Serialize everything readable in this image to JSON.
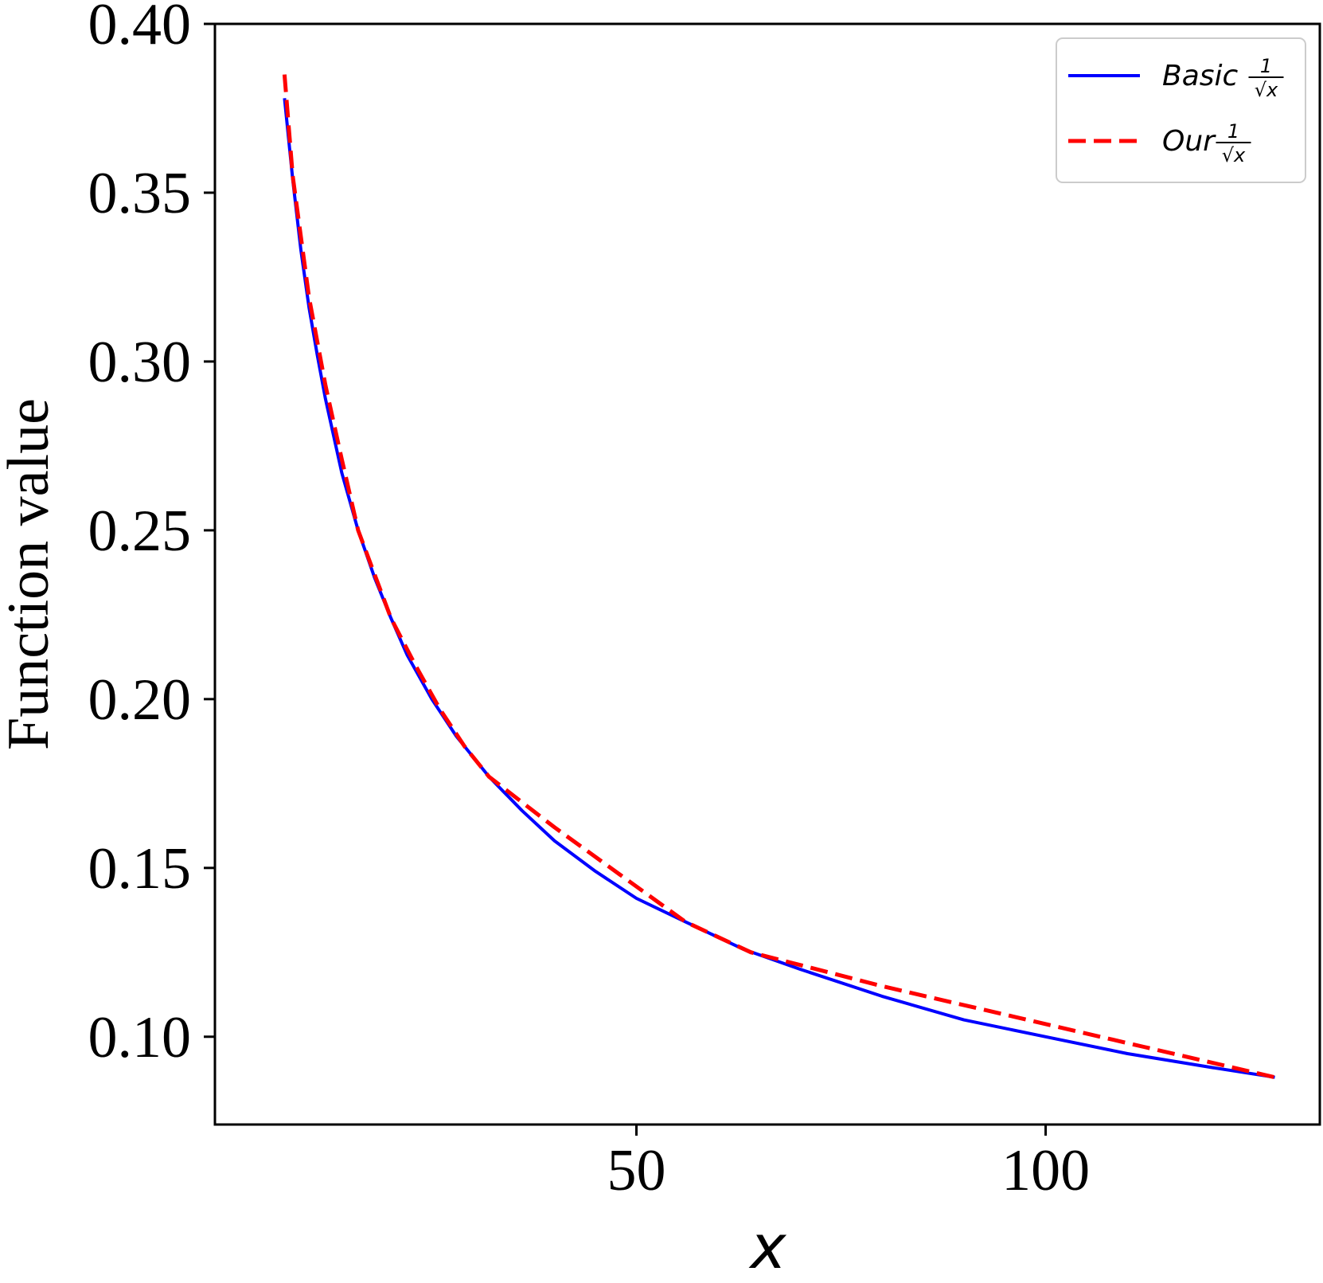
{
  "chart_data": {
    "type": "line",
    "xlabel": "x",
    "ylabel": "Function value",
    "xlim": [
      -1.5,
      133.5
    ],
    "ylim": [
      0.074,
      0.4
    ],
    "xticks": [
      50,
      100
    ],
    "xtick_labels": [
      "50",
      "100"
    ],
    "yticks": [
      0.1,
      0.15,
      0.2,
      0.25,
      0.3,
      0.35,
      0.4
    ],
    "ytick_labels": [
      "0.10",
      "0.15",
      "0.20",
      "0.25",
      "0.30",
      "0.35",
      "0.40"
    ],
    "grid": false,
    "legend_position": "top-right",
    "series": [
      {
        "name": "Basic",
        "name_fraction": {
          "numerator": "1",
          "denominator": "√x"
        },
        "color": "#0000ff",
        "style": "solid",
        "x": [
          7,
          8,
          9,
          10,
          11,
          12,
          14,
          16,
          18,
          20,
          22,
          25,
          28,
          32,
          36,
          40,
          45,
          50,
          56,
          63,
          70,
          80,
          90,
          100,
          110,
          120,
          128
        ],
        "y": [
          0.378,
          0.354,
          0.333,
          0.316,
          0.302,
          0.289,
          0.267,
          0.25,
          0.236,
          0.224,
          0.213,
          0.2,
          0.189,
          0.177,
          0.167,
          0.158,
          0.149,
          0.141,
          0.134,
          0.126,
          0.12,
          0.112,
          0.105,
          0.1,
          0.095,
          0.091,
          0.088
        ]
      },
      {
        "name": "Our",
        "name_fraction": {
          "numerator": "1",
          "denominator": "√x"
        },
        "color": "#ff0000",
        "style": "dashed",
        "x": [
          7,
          8,
          10,
          12,
          14,
          16,
          18,
          20,
          23,
          26,
          29,
          32,
          40,
          48,
          56,
          64,
          80,
          96,
          112,
          128
        ],
        "y": [
          0.385,
          0.355,
          0.319,
          0.293,
          0.271,
          0.25,
          0.237,
          0.224,
          0.21,
          0.197,
          0.186,
          0.177,
          0.162,
          0.148,
          0.134,
          0.125,
          0.115,
          0.106,
          0.097,
          0.088
        ]
      }
    ]
  }
}
